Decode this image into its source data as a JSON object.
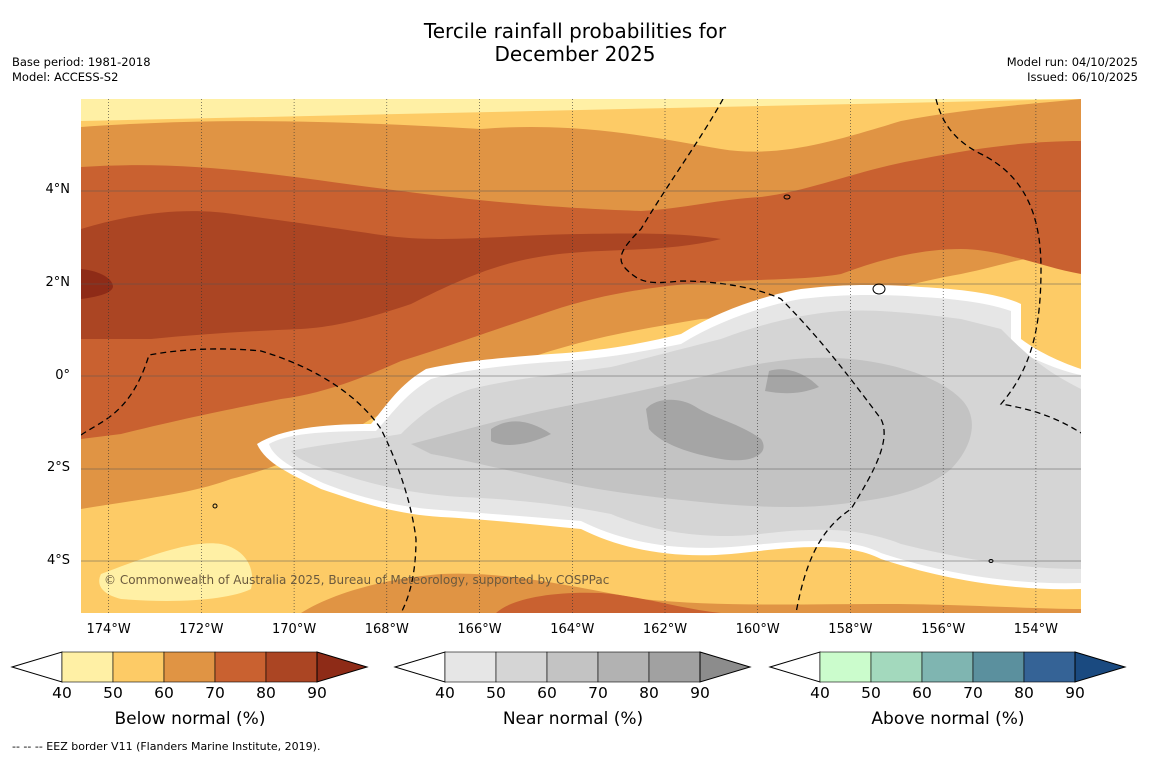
{
  "title_line1": "Tercile rainfall probabilities for",
  "title_line2": "December 2025",
  "base_period": "Base period: 1981-2018",
  "model": "Model: ACCESS-S2",
  "model_run": "Model run: 04/10/2025",
  "issued": "Issued: 06/10/2025",
  "lat_labels": [
    "4°N",
    "2°N",
    "0°",
    "2°S",
    "4°S"
  ],
  "lon_labels": [
    "174°W",
    "172°W",
    "170°W",
    "168°W",
    "166°W",
    "164°W",
    "162°W",
    "160°W",
    "158°W",
    "156°W",
    "154°W"
  ],
  "copyright": "© Commonwealth of Australia 2025, Bureau of Meteorology, supported by COSPPac",
  "colorbars": [
    {
      "label": "Below normal (%)",
      "ticks": [
        "40",
        "50",
        "60",
        "70",
        "80",
        "90"
      ],
      "colors": [
        "#fff0a5",
        "#fdcb66",
        "#e09444",
        "#c96130",
        "#ab4523",
        "#8e2b17"
      ]
    },
    {
      "label": "Near normal (%)",
      "ticks": [
        "40",
        "50",
        "60",
        "70",
        "80",
        "90"
      ],
      "colors": [
        "#e6e6e6",
        "#d5d5d5",
        "#c3c3c3",
        "#b2b2b2",
        "#a1a1a1",
        "#8c8c8c"
      ]
    },
    {
      "label": "Above normal (%)",
      "ticks": [
        "40",
        "50",
        "60",
        "70",
        "80",
        "90"
      ],
      "colors": [
        "#cbfccc",
        "#a3d9bd",
        "#7fb5b1",
        "#5b909e",
        "#356396",
        "#1a4a80"
      ]
    }
  ],
  "footer": "--  --  -- EEZ border V11 (Flanders Marine Institute, 2019)."
}
